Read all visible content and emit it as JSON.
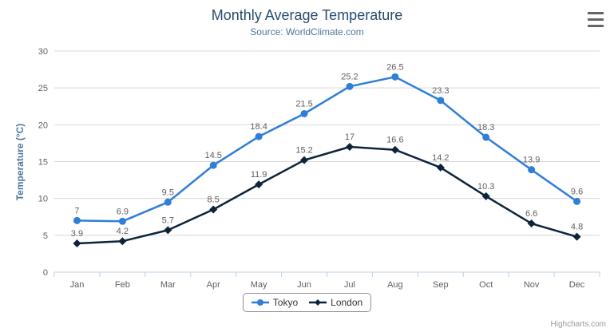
{
  "chart_data": {
    "type": "line",
    "title": "Monthly Average Temperature",
    "subtitle": "Source: WorldClimate.com",
    "xlabel": "",
    "ylabel": "Temperature (°C)",
    "categories": [
      "Jan",
      "Feb",
      "Mar",
      "Apr",
      "May",
      "Jun",
      "Jul",
      "Aug",
      "Sep",
      "Oct",
      "Nov",
      "Dec"
    ],
    "series": [
      {
        "name": "Tokyo",
        "marker": "circle",
        "color": "#2f7ed8",
        "values": [
          7,
          6.9,
          9.5,
          14.5,
          18.4,
          21.5,
          25.2,
          26.5,
          23.3,
          18.3,
          13.9,
          9.6
        ]
      },
      {
        "name": "London",
        "marker": "diamond",
        "color": "#0d233a",
        "values": [
          3.9,
          4.2,
          5.7,
          8.5,
          11.9,
          15.2,
          17,
          16.6,
          14.2,
          10.3,
          6.6,
          4.8
        ]
      }
    ],
    "ylim": [
      0,
      30
    ],
    "ytick": 5,
    "grid": true,
    "legend_position": "bottom"
  },
  "colors": {
    "grid": "#d8d8d8",
    "axis_line": "#c0d0e0",
    "tick_label": "#606060",
    "data_label": "#606060",
    "title": "#274b6d",
    "subtitle": "#4d759e",
    "legend_text": "#333333",
    "menu_icon": "#666666",
    "credits": "#999999"
  },
  "credits": {
    "label": "Highcharts.com"
  }
}
